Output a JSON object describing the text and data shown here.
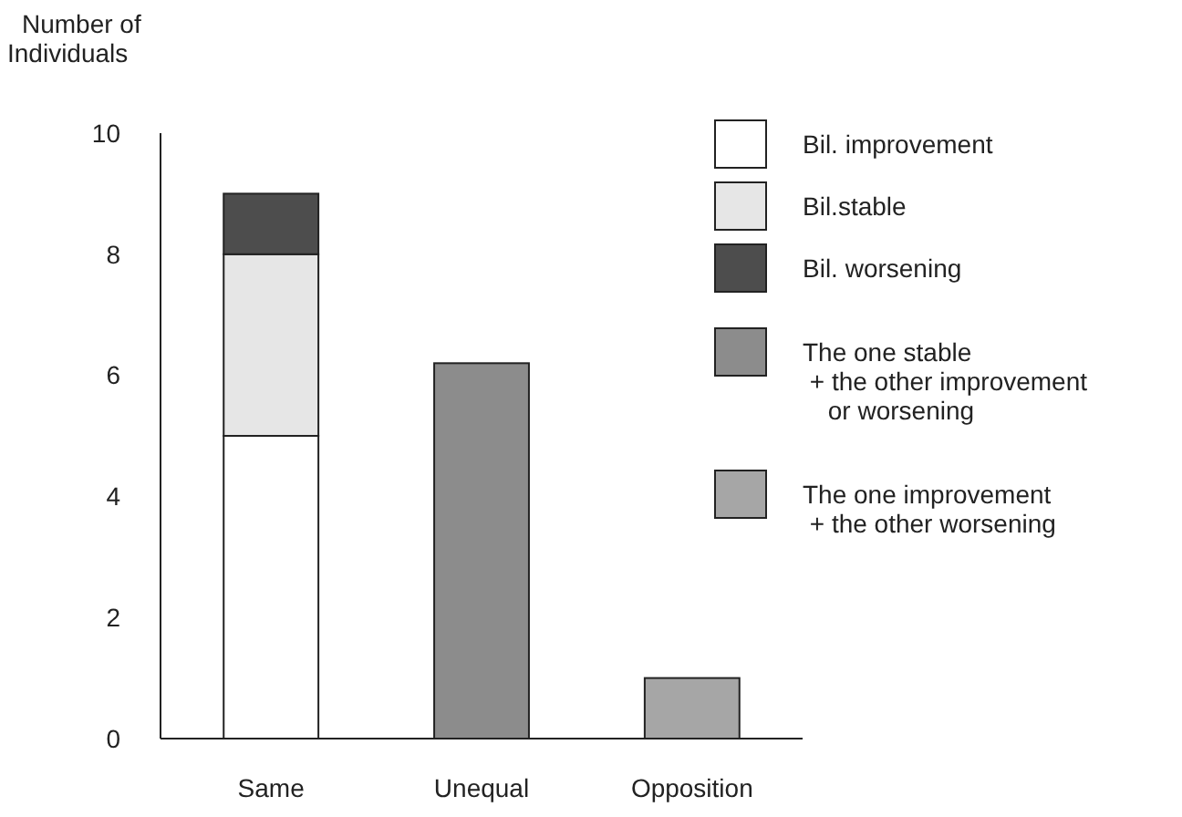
{
  "chart_data": {
    "type": "bar",
    "stacked": true,
    "ylabel": "Number of\nIndividuals",
    "categories": [
      "Same",
      "Unequal",
      "Opposition"
    ],
    "ylim": [
      0,
      10
    ],
    "yticks": [
      0,
      2,
      4,
      6,
      8,
      10
    ],
    "grid": false,
    "legend": "top right",
    "series": [
      {
        "name": "Bil. improvement",
        "color": "#ffffff",
        "values": [
          5,
          0,
          0
        ]
      },
      {
        "name": "Bil.stable",
        "color": "#e6e6e6",
        "values": [
          3,
          0,
          0
        ]
      },
      {
        "name": "Bil. worsening",
        "color": "#4d4d4d",
        "values": [
          1,
          0,
          0
        ]
      },
      {
        "name": "The one stable\n + the other improvement\n or worsening",
        "color": "#8c8c8c",
        "values": [
          0,
          6.2,
          0
        ]
      },
      {
        "name": "The one improvement\n + the other worsening",
        "color": "#a6a6a6",
        "values": [
          0,
          0,
          1
        ]
      }
    ]
  }
}
